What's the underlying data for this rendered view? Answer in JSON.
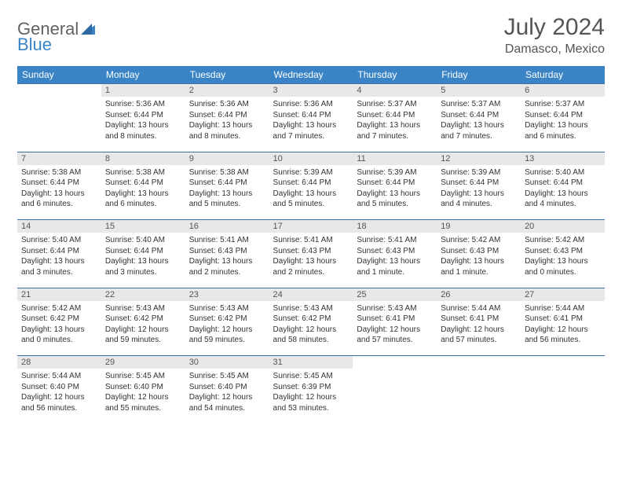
{
  "logo": {
    "part1": "General",
    "part2": "Blue"
  },
  "title": "July 2024",
  "location": "Damasco, Mexico",
  "dayHeaders": [
    "Sunday",
    "Monday",
    "Tuesday",
    "Wednesday",
    "Thursday",
    "Friday",
    "Saturday"
  ],
  "colors": {
    "headerBg": "#3a84c6",
    "headerText": "#ffffff",
    "dayNumBg": "#e8e8e8",
    "ruleColor": "#3a72a8",
    "logoGray": "#626262",
    "logoBlue": "#3a84c6"
  },
  "weeks": [
    [
      null,
      {
        "n": "1",
        "sr": "5:36 AM",
        "ss": "6:44 PM",
        "dl": "13 hours and 8 minutes."
      },
      {
        "n": "2",
        "sr": "5:36 AM",
        "ss": "6:44 PM",
        "dl": "13 hours and 8 minutes."
      },
      {
        "n": "3",
        "sr": "5:36 AM",
        "ss": "6:44 PM",
        "dl": "13 hours and 7 minutes."
      },
      {
        "n": "4",
        "sr": "5:37 AM",
        "ss": "6:44 PM",
        "dl": "13 hours and 7 minutes."
      },
      {
        "n": "5",
        "sr": "5:37 AM",
        "ss": "6:44 PM",
        "dl": "13 hours and 7 minutes."
      },
      {
        "n": "6",
        "sr": "5:37 AM",
        "ss": "6:44 PM",
        "dl": "13 hours and 6 minutes."
      }
    ],
    [
      {
        "n": "7",
        "sr": "5:38 AM",
        "ss": "6:44 PM",
        "dl": "13 hours and 6 minutes."
      },
      {
        "n": "8",
        "sr": "5:38 AM",
        "ss": "6:44 PM",
        "dl": "13 hours and 6 minutes."
      },
      {
        "n": "9",
        "sr": "5:38 AM",
        "ss": "6:44 PM",
        "dl": "13 hours and 5 minutes."
      },
      {
        "n": "10",
        "sr": "5:39 AM",
        "ss": "6:44 PM",
        "dl": "13 hours and 5 minutes."
      },
      {
        "n": "11",
        "sr": "5:39 AM",
        "ss": "6:44 PM",
        "dl": "13 hours and 5 minutes."
      },
      {
        "n": "12",
        "sr": "5:39 AM",
        "ss": "6:44 PM",
        "dl": "13 hours and 4 minutes."
      },
      {
        "n": "13",
        "sr": "5:40 AM",
        "ss": "6:44 PM",
        "dl": "13 hours and 4 minutes."
      }
    ],
    [
      {
        "n": "14",
        "sr": "5:40 AM",
        "ss": "6:44 PM",
        "dl": "13 hours and 3 minutes."
      },
      {
        "n": "15",
        "sr": "5:40 AM",
        "ss": "6:44 PM",
        "dl": "13 hours and 3 minutes."
      },
      {
        "n": "16",
        "sr": "5:41 AM",
        "ss": "6:43 PM",
        "dl": "13 hours and 2 minutes."
      },
      {
        "n": "17",
        "sr": "5:41 AM",
        "ss": "6:43 PM",
        "dl": "13 hours and 2 minutes."
      },
      {
        "n": "18",
        "sr": "5:41 AM",
        "ss": "6:43 PM",
        "dl": "13 hours and 1 minute."
      },
      {
        "n": "19",
        "sr": "5:42 AM",
        "ss": "6:43 PM",
        "dl": "13 hours and 1 minute."
      },
      {
        "n": "20",
        "sr": "5:42 AM",
        "ss": "6:43 PM",
        "dl": "13 hours and 0 minutes."
      }
    ],
    [
      {
        "n": "21",
        "sr": "5:42 AM",
        "ss": "6:42 PM",
        "dl": "13 hours and 0 minutes."
      },
      {
        "n": "22",
        "sr": "5:43 AM",
        "ss": "6:42 PM",
        "dl": "12 hours and 59 minutes."
      },
      {
        "n": "23",
        "sr": "5:43 AM",
        "ss": "6:42 PM",
        "dl": "12 hours and 59 minutes."
      },
      {
        "n": "24",
        "sr": "5:43 AM",
        "ss": "6:42 PM",
        "dl": "12 hours and 58 minutes."
      },
      {
        "n": "25",
        "sr": "5:43 AM",
        "ss": "6:41 PM",
        "dl": "12 hours and 57 minutes."
      },
      {
        "n": "26",
        "sr": "5:44 AM",
        "ss": "6:41 PM",
        "dl": "12 hours and 57 minutes."
      },
      {
        "n": "27",
        "sr": "5:44 AM",
        "ss": "6:41 PM",
        "dl": "12 hours and 56 minutes."
      }
    ],
    [
      {
        "n": "28",
        "sr": "5:44 AM",
        "ss": "6:40 PM",
        "dl": "12 hours and 56 minutes."
      },
      {
        "n": "29",
        "sr": "5:45 AM",
        "ss": "6:40 PM",
        "dl": "12 hours and 55 minutes."
      },
      {
        "n": "30",
        "sr": "5:45 AM",
        "ss": "6:40 PM",
        "dl": "12 hours and 54 minutes."
      },
      {
        "n": "31",
        "sr": "5:45 AM",
        "ss": "6:39 PM",
        "dl": "12 hours and 53 minutes."
      },
      null,
      null,
      null
    ]
  ],
  "labels": {
    "sunrise": "Sunrise: ",
    "sunset": "Sunset: ",
    "daylight": "Daylight: "
  }
}
